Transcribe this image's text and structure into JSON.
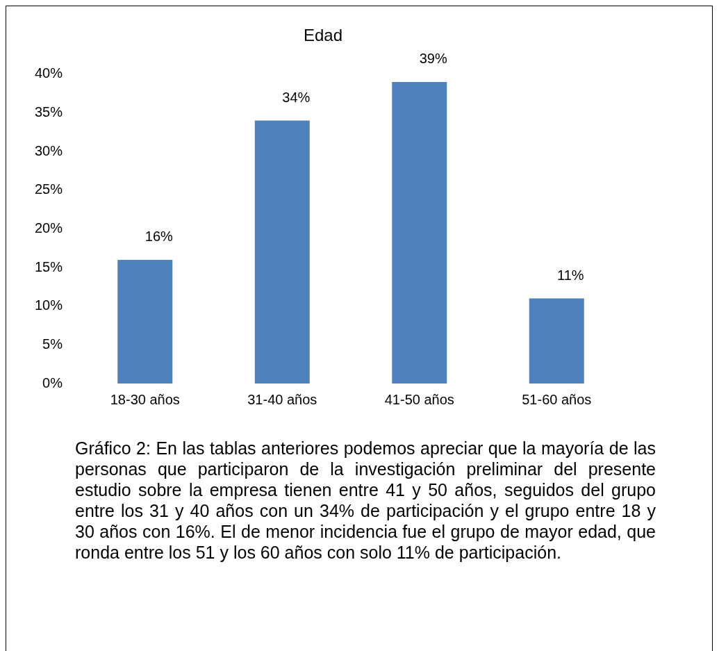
{
  "chart_data": {
    "type": "bar",
    "title": "Edad",
    "categories": [
      "18-30 años",
      "31-40 años",
      "41-50 años",
      "51-60 años"
    ],
    "values": [
      16,
      34,
      39,
      11
    ],
    "value_labels": [
      "16%",
      "34%",
      "39%",
      "11%"
    ],
    "color": "#4f81bd",
    "ylim": [
      0,
      40
    ],
    "yticks": [
      {
        "value": 0,
        "label": "0%"
      },
      {
        "value": 5,
        "label": "5%"
      },
      {
        "value": 10,
        "label": "10%"
      },
      {
        "value": 15,
        "label": "15%"
      },
      {
        "value": 20,
        "label": "20%"
      },
      {
        "value": 25,
        "label": "25%"
      },
      {
        "value": 30,
        "label": "30%"
      },
      {
        "value": 35,
        "label": "35%"
      },
      {
        "value": 40,
        "label": "40%"
      }
    ],
    "grid": false,
    "legend": false,
    "annotations": [
      "Gráfico 2: En las tablas anteriores podemos apreciar que la mayoría de las personas que participaron de la investigación preliminar del presente estudio sobre la empresa tienen entre 41 y 50 años, seguidos del grupo entre los 31 y 40 años con un 34% de participación y el grupo entre 18 y 30 años con 16%. El de menor incidencia fue el grupo de mayor edad, que ronda entre los 51 y los 60 años con solo 11% de participación."
    ]
  }
}
